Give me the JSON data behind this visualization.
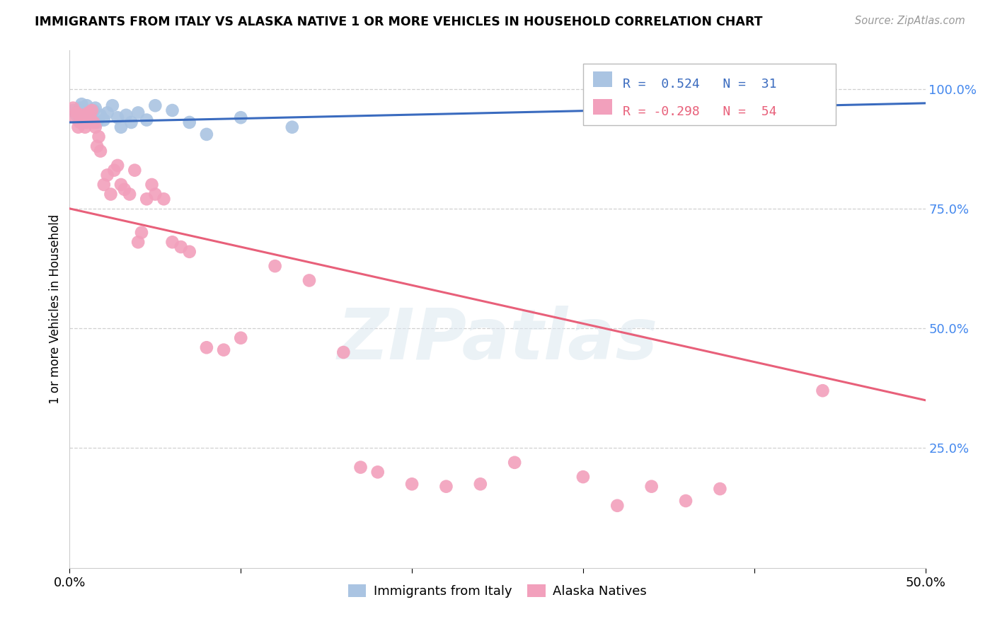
{
  "title": "IMMIGRANTS FROM ITALY VS ALASKA NATIVE 1 OR MORE VEHICLES IN HOUSEHOLD CORRELATION CHART",
  "source": "Source: ZipAtlas.com",
  "ylabel": "1 or more Vehicles in Household",
  "xmin": 0.0,
  "xmax": 0.5,
  "ymin": 0.0,
  "ymax": 1.08,
  "yticks": [
    0.25,
    0.5,
    0.75,
    1.0
  ],
  "ytick_labels": [
    "25.0%",
    "50.0%",
    "75.0%",
    "100.0%"
  ],
  "legend_blue_r": "0.524",
  "legend_blue_n": "31",
  "legend_pink_r": "-0.298",
  "legend_pink_n": "54",
  "blue_color": "#aac4e2",
  "blue_line_color": "#3a6bbf",
  "pink_color": "#f2a0bc",
  "pink_line_color": "#e8607a",
  "watermark_text": "ZIPatlas",
  "background_color": "#ffffff",
  "grid_color": "#d0d0d0",
  "blue_scatter_x": [
    0.002,
    0.004,
    0.006,
    0.007,
    0.008,
    0.009,
    0.01,
    0.011,
    0.012,
    0.013,
    0.014,
    0.015,
    0.016,
    0.018,
    0.02,
    0.022,
    0.025,
    0.028,
    0.03,
    0.033,
    0.036,
    0.04,
    0.045,
    0.05,
    0.06,
    0.07,
    0.08,
    0.1,
    0.13,
    0.4,
    0.415
  ],
  "blue_scatter_y": [
    0.955,
    0.945,
    0.96,
    0.968,
    0.93,
    0.94,
    0.965,
    0.935,
    0.95,
    0.942,
    0.955,
    0.96,
    0.93,
    0.945,
    0.935,
    0.95,
    0.965,
    0.94,
    0.92,
    0.945,
    0.93,
    0.95,
    0.935,
    0.965,
    0.955,
    0.93,
    0.905,
    0.94,
    0.92,
    1.0,
    1.0
  ],
  "pink_scatter_x": [
    0.002,
    0.003,
    0.004,
    0.005,
    0.006,
    0.007,
    0.008,
    0.009,
    0.01,
    0.011,
    0.012,
    0.013,
    0.014,
    0.015,
    0.016,
    0.017,
    0.018,
    0.02,
    0.022,
    0.024,
    0.026,
    0.028,
    0.03,
    0.032,
    0.035,
    0.038,
    0.04,
    0.042,
    0.045,
    0.048,
    0.05,
    0.055,
    0.06,
    0.065,
    0.07,
    0.08,
    0.09,
    0.1,
    0.12,
    0.14,
    0.16,
    0.17,
    0.18,
    0.2,
    0.22,
    0.24,
    0.26,
    0.3,
    0.32,
    0.34,
    0.36,
    0.38,
    0.42,
    0.44
  ],
  "pink_scatter_y": [
    0.96,
    0.94,
    0.95,
    0.92,
    0.93,
    0.935,
    0.945,
    0.92,
    0.93,
    0.95,
    0.94,
    0.955,
    0.93,
    0.92,
    0.88,
    0.9,
    0.87,
    0.8,
    0.82,
    0.78,
    0.83,
    0.84,
    0.8,
    0.79,
    0.78,
    0.83,
    0.68,
    0.7,
    0.77,
    0.8,
    0.78,
    0.77,
    0.68,
    0.67,
    0.66,
    0.46,
    0.455,
    0.48,
    0.63,
    0.6,
    0.45,
    0.21,
    0.2,
    0.175,
    0.17,
    0.175,
    0.22,
    0.19,
    0.13,
    0.17,
    0.14,
    0.165,
    1.0,
    0.37
  ],
  "blue_line_x0": 0.0,
  "blue_line_x1": 0.5,
  "blue_line_y0": 0.93,
  "blue_line_y1": 0.97,
  "pink_line_x0": 0.0,
  "pink_line_x1": 0.5,
  "pink_line_y0": 0.75,
  "pink_line_y1": 0.35
}
